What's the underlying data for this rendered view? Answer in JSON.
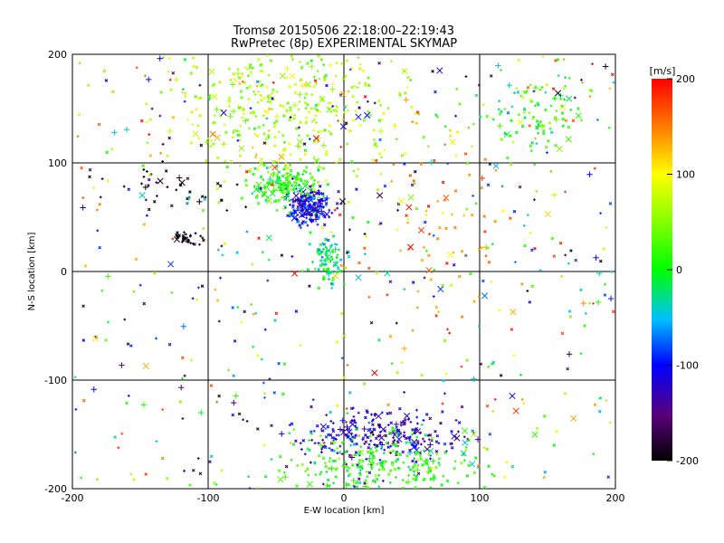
{
  "chart_data": {
    "type": "scatter",
    "title": "Tromsø 20150506 22:18:00–22:19:43",
    "subtitle": "RwPretec (8p) EXPERIMENTAL SKYMAP",
    "xlabel": "E-W location [km]",
    "ylabel": "N-S location [km]",
    "xlim": [
      -200,
      200
    ],
    "ylim": [
      -200,
      200
    ],
    "xticks": [
      "-200",
      "-100",
      "0",
      "100",
      "200"
    ],
    "yticks": [
      "-200",
      "-100",
      "0",
      "100",
      "200"
    ],
    "grid": true,
    "colorbar": {
      "label": "[m/s]",
      "range": [
        -200,
        200
      ],
      "ticks": [
        "200",
        "100",
        "0",
        "-100",
        "-200"
      ],
      "placement": "right",
      "colormap": "rainbow (black - purple - blue - cyan - green - yellow - red)"
    },
    "clusters": [
      {
        "x": -25,
        "y": 60,
        "sx": 8,
        "sy": 8,
        "v": -110,
        "n": 220
      },
      {
        "x": -45,
        "y": 80,
        "sx": 12,
        "sy": 8,
        "v": 10,
        "n": 160
      },
      {
        "x": -10,
        "y": 10,
        "sx": 6,
        "sy": 12,
        "v": -20,
        "n": 90
      },
      {
        "x": -40,
        "y": 150,
        "sx": 45,
        "sy": 35,
        "v": 70,
        "n": 420
      },
      {
        "x": 25,
        "y": -150,
        "sx": 30,
        "sy": 12,
        "v": -120,
        "n": 260
      },
      {
        "x": 30,
        "y": -180,
        "sx": 35,
        "sy": 15,
        "v": 10,
        "n": 260
      },
      {
        "x": 140,
        "y": 140,
        "sx": 20,
        "sy": 20,
        "v": 0,
        "n": 60
      },
      {
        "x": 150,
        "y": 155,
        "sx": 15,
        "sy": 15,
        "v": 30,
        "n": 40
      },
      {
        "x": -115,
        "y": 30,
        "sx": 5,
        "sy": 4,
        "v": -200,
        "n": 30
      },
      {
        "x": -130,
        "y": 75,
        "sx": 30,
        "sy": 15,
        "v": -200,
        "n": 40
      },
      {
        "x": 70,
        "y": 40,
        "sx": 35,
        "sy": 40,
        "v": 150,
        "n": 80
      },
      {
        "x": 0,
        "y": 0,
        "sx": 140,
        "sy": 140,
        "v": null,
        "n": 520
      }
    ]
  }
}
